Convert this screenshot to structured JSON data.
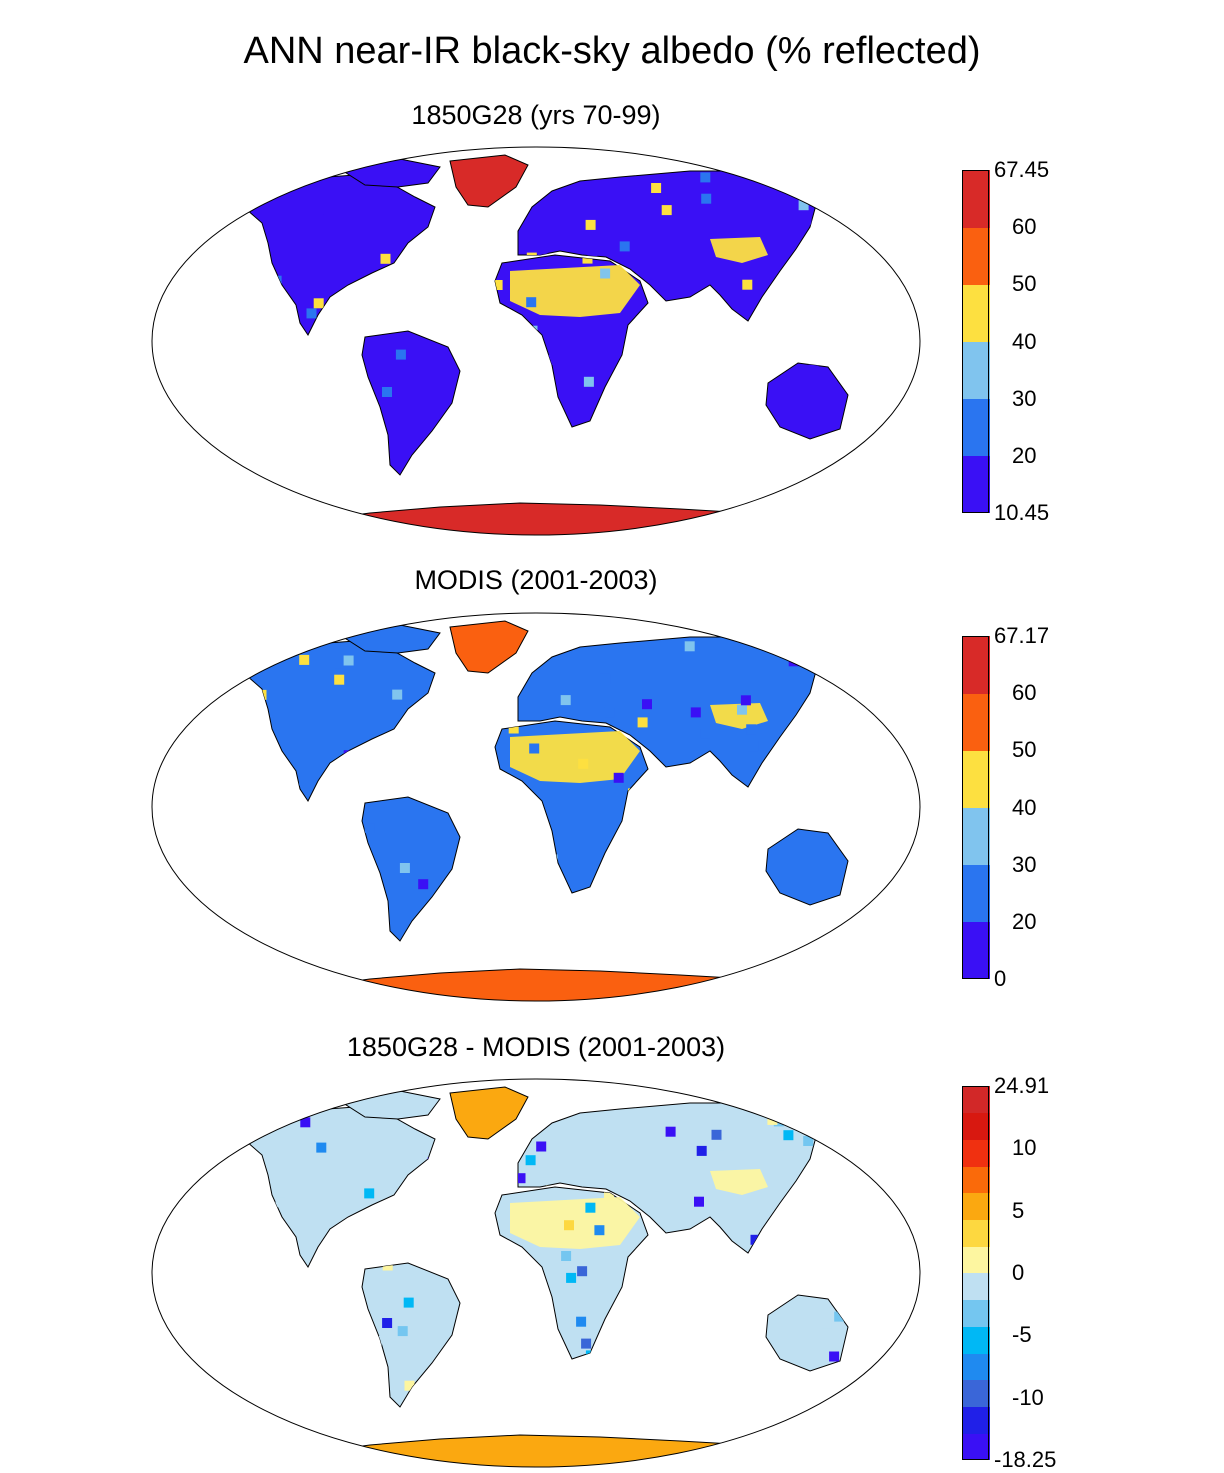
{
  "title": "ANN near-IR black-sky albedo (% reflected)",
  "panels": [
    {
      "title": "1850G28 (yrs 70-99)",
      "colors": [
        "#3a10f5",
        "#2a75f0",
        "#80c4ee",
        "#fde040",
        "#fa6010",
        "#d82a28"
      ],
      "ticks": [
        "67.45",
        "60",
        "50",
        "40",
        "30",
        "20",
        "10.45"
      ],
      "desert_color": "#fde040",
      "ice_color": "#d82a28",
      "land_color": "#3a10f5"
    },
    {
      "title": "MODIS (2001-2003)",
      "colors": [
        "#3a10f5",
        "#2a75f0",
        "#80c4ee",
        "#fde040",
        "#fa6010",
        "#d82a28"
      ],
      "ticks": [
        "67.17",
        "60",
        "50",
        "40",
        "30",
        "20",
        "0"
      ],
      "desert_color": "#fde040",
      "ice_color": "#fa6010",
      "land_color": "#2a75f0"
    },
    {
      "title": "1850G28 - MODIS (2001-2003)",
      "colors": [
        "#3a10f5",
        "#2020e8",
        "#3a66d8",
        "#1f8af0",
        "#00b8f5",
        "#74c6f0",
        "#bfe0f2",
        "#fdf6a0",
        "#fdd840",
        "#fba810",
        "#fa6a0a",
        "#f03010",
        "#d81810",
        "#d22828"
      ],
      "ticks": [
        "24.91",
        "10",
        "5",
        "0",
        "-5",
        "-10",
        "-18.25"
      ],
      "desert_color": "#fdf6a0",
      "ice_color": "#fba810",
      "land_color": "#bfe0f2"
    }
  ]
}
